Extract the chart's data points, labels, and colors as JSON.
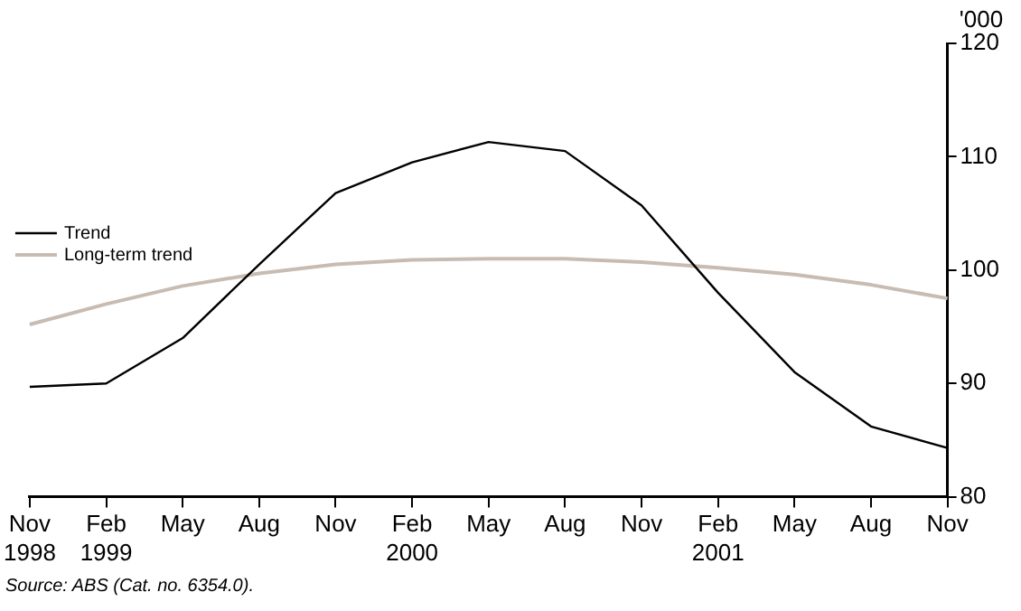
{
  "chart_data": {
    "type": "line",
    "ylabel": "'000",
    "categories": [
      "Nov\n1998",
      "Feb\n1999",
      "May",
      "Aug",
      "Nov",
      "Feb\n2000",
      "May",
      "Aug",
      "Nov",
      "Feb\n2001",
      "May",
      "Aug",
      "Nov"
    ],
    "series": [
      {
        "name": "Trend",
        "color": "#000000",
        "values": [
          89.7,
          90.0,
          94.0,
          100.5,
          106.8,
          109.5,
          111.3,
          110.5,
          105.7,
          98.0,
          91.0,
          86.2,
          84.3
        ]
      },
      {
        "name": "Long-term trend",
        "color": "#c8bcb2",
        "values": [
          95.2,
          97.0,
          98.6,
          99.7,
          100.5,
          100.9,
          101.0,
          101.0,
          100.7,
          100.2,
          99.6,
          98.7,
          97.5
        ]
      }
    ],
    "ylim": [
      80,
      120
    ],
    "yticks": [
      80,
      90,
      100,
      110,
      120
    ],
    "grid": false,
    "legend": "left",
    "marker": "none",
    "line_style": "solid",
    "annotations": [
      "Source: ABS (Cat. no. 6354.0)."
    ]
  }
}
